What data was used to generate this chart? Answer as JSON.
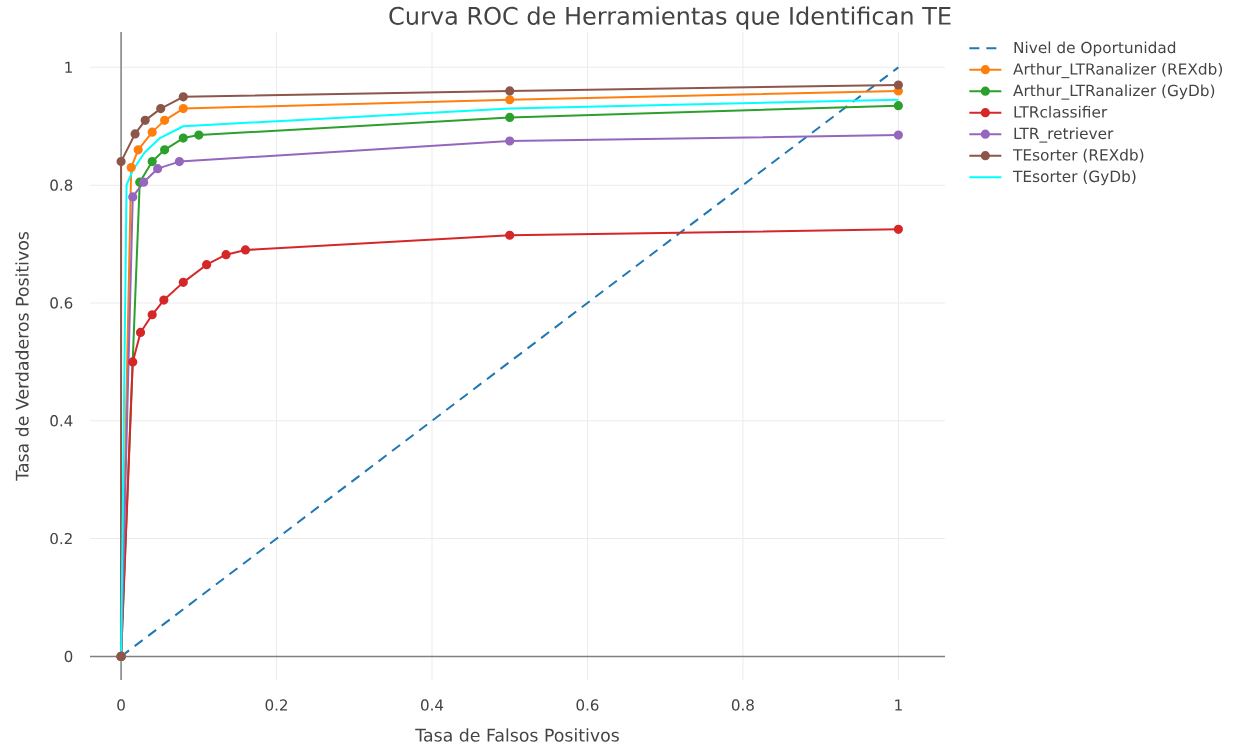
{
  "chart_data": {
    "type": "line",
    "title": "Curva ROC de Herramientas que Identifican TE",
    "xlabel": "Tasa de Falsos Positivos",
    "ylabel": "Tasa de Verdaderos Positivos",
    "xlim": [
      -0.04,
      1.06
    ],
    "ylim": [
      -0.04,
      1.06
    ],
    "xticks": [
      0,
      0.2,
      0.4,
      0.6,
      0.8,
      1
    ],
    "yticks": [
      0,
      0.2,
      0.4,
      0.6,
      0.8,
      1
    ],
    "grid": true,
    "legend": "top right",
    "marker": "circle",
    "series": [
      {
        "name": "Nivel de Oportunidad",
        "color": "#1f77b4",
        "marker": "none",
        "line_style": "dashed",
        "x": [
          0,
          1
        ],
        "values": [
          0,
          1
        ]
      },
      {
        "name": "Arthur_LTRanalizer (REXdb)",
        "color": "#ff7f0e",
        "x": [
          0,
          0.013,
          0.022,
          0.04,
          0.056,
          0.08,
          0.5,
          1
        ],
        "values": [
          0,
          0.83,
          0.86,
          0.89,
          0.91,
          0.93,
          0.945,
          0.96
        ]
      },
      {
        "name": "Arthur_LTRanalizer (GyDb)",
        "color": "#2ca02c",
        "x": [
          0,
          0.024,
          0.04,
          0.056,
          0.08,
          0.1,
          0.5,
          1
        ],
        "values": [
          0,
          0.805,
          0.84,
          0.86,
          0.88,
          0.885,
          0.915,
          0.935
        ]
      },
      {
        "name": "LTRclassifier",
        "color": "#d62728",
        "x": [
          0,
          0.015,
          0.025,
          0.04,
          0.055,
          0.08,
          0.11,
          0.135,
          0.16,
          0.5,
          1
        ],
        "values": [
          0,
          0.5,
          0.55,
          0.58,
          0.605,
          0.635,
          0.665,
          0.682,
          0.69,
          0.715,
          0.725
        ]
      },
      {
        "name": "LTR_retriever",
        "color": "#9467bd",
        "x": [
          0,
          0.015,
          0.029,
          0.047,
          0.075,
          0.5,
          1
        ],
        "values": [
          0,
          0.78,
          0.805,
          0.828,
          0.84,
          0.875,
          0.885
        ]
      },
      {
        "name": "TEsorter (REXdb)",
        "color": "#8c564b",
        "x": [
          0,
          0,
          0.018,
          0.031,
          0.051,
          0.08,
          0.5,
          1
        ],
        "values": [
          0,
          0.84,
          0.887,
          0.91,
          0.93,
          0.95,
          0.96,
          0.97
        ]
      },
      {
        "name": "TEsorter (GyDb)",
        "color": "#00ffff",
        "marker": "none",
        "x": [
          0,
          0.007,
          0.015,
          0.03,
          0.05,
          0.08,
          0.5,
          1
        ],
        "values": [
          0,
          0.8,
          0.825,
          0.855,
          0.88,
          0.9,
          0.93,
          0.945
        ]
      }
    ]
  }
}
